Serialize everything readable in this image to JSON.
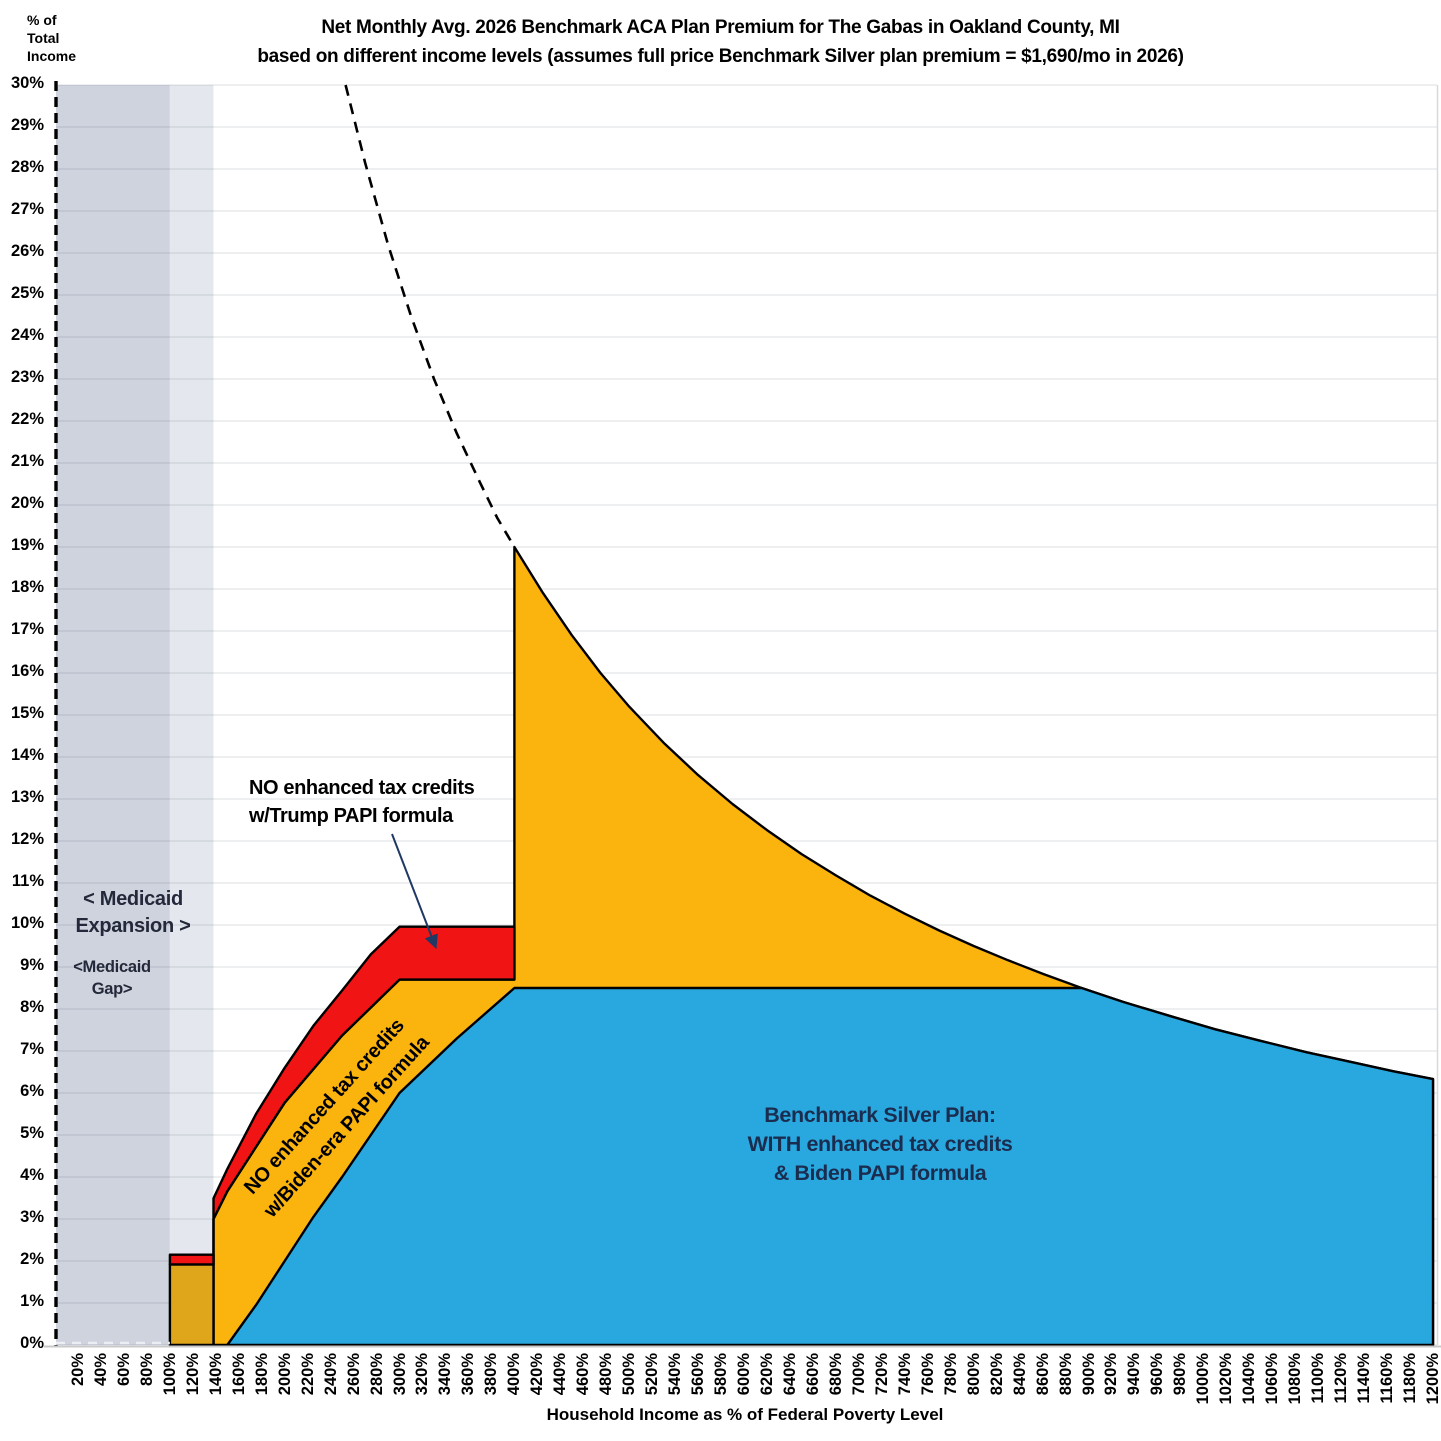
{
  "title": {
    "line1": "Net Monthly Avg. 2026 Benchmark ACA Plan Premium for The Gabas in Oakland County, MI",
    "line2": "based on different income levels (assumes full price Benchmark Silver plan premium = $1,690/mo in 2026)"
  },
  "y_axis": {
    "title_lines": [
      "% of",
      "Total",
      "Income"
    ],
    "min": 0,
    "max": 30,
    "step": 1,
    "suffix": "%"
  },
  "x_axis": {
    "title": "Household Income as % of Federal Poverty Level",
    "min": 20,
    "max": 1200,
    "step": 20,
    "suffix": "%"
  },
  "region_labels": {
    "expansion_line1": "< Medicaid",
    "expansion_line2": "Expansion >",
    "gap_line1": "<Medicaid",
    "gap_line2": "Gap>"
  },
  "annotations": {
    "trump_line1": "NO enhanced tax credits",
    "trump_line2": "w/Trump PAPI formula",
    "biden_line1": "NO enhanced tax credits",
    "biden_line2": "w/Biden-era PAPI formula",
    "blue_line1": "Benchmark Silver Plan:",
    "blue_line2": "WITH enhanced tax credits",
    "blue_line3": "& Biden PAPI formula"
  },
  "colors": {
    "red": "#F01414",
    "gold": "#FBB40E",
    "gold_shaded": "#DFA51B",
    "blue": "#29A8E0",
    "band_dark": "#CFD3DE",
    "band_light": "#E4E8EE",
    "grid": "rgba(70,80,100,0.14)",
    "outline": "#000000",
    "arrow": "#1F3864"
  },
  "chart_data": {
    "type": "area",
    "title": "Net Monthly Avg. 2026 Benchmark ACA Plan Premium for The Gabas in Oakland County, MI",
    "xlabel": "Household Income as % of Federal Poverty Level",
    "ylabel": "% of Total Income",
    "xlim": [
      20,
      1200
    ],
    "ylim": [
      0,
      30
    ],
    "grid": true,
    "bands": [
      {
        "name": "medicaid-expansion-band",
        "x": [
          0,
          100
        ],
        "color_key": "band_dark"
      },
      {
        "name": "medicaid-gap-band",
        "x": [
          100,
          138
        ],
        "color_key": "band_light"
      }
    ],
    "series": [
      {
        "name": "no-credits-biden-papi-area",
        "kind": "area",
        "color_key": "gold",
        "closed": true,
        "points": [
          [
            138,
            0
          ],
          [
            138,
            3.0
          ],
          [
            150,
            3.66
          ],
          [
            200,
            5.77
          ],
          [
            250,
            7.37
          ],
          [
            300,
            8.7
          ],
          [
            400,
            8.7
          ],
          [
            400,
            19
          ],
          [
            425,
            17.9
          ],
          [
            450,
            16.9
          ],
          [
            475,
            16.0
          ],
          [
            500,
            15.2
          ],
          [
            530,
            14.34
          ],
          [
            560,
            13.57
          ],
          [
            590,
            12.88
          ],
          [
            620,
            12.26
          ],
          [
            650,
            11.69
          ],
          [
            680,
            11.18
          ],
          [
            710,
            10.7
          ],
          [
            740,
            10.27
          ],
          [
            770,
            9.87
          ],
          [
            800,
            9.5
          ],
          [
            830,
            9.16
          ],
          [
            860,
            8.84
          ],
          [
            894,
            8.5
          ],
          [
            930,
            8.17
          ],
          [
            970,
            7.84
          ],
          [
            1010,
            7.52
          ],
          [
            1050,
            7.24
          ],
          [
            1090,
            6.97
          ],
          [
            1130,
            6.73
          ],
          [
            1165,
            6.52
          ],
          [
            1200,
            6.33
          ],
          [
            1200,
            0
          ]
        ]
      },
      {
        "name": "enhanced-credits-biden-area",
        "kind": "area",
        "color_key": "blue",
        "closed": true,
        "points": [
          [
            150,
            0
          ],
          [
            175,
            0.95
          ],
          [
            200,
            2
          ],
          [
            225,
            3.05
          ],
          [
            250,
            4
          ],
          [
            275,
            5.0
          ],
          [
            300,
            6
          ],
          [
            350,
            7.3
          ],
          [
            400,
            8.5
          ],
          [
            894,
            8.5
          ],
          [
            930,
            8.17
          ],
          [
            970,
            7.84
          ],
          [
            1010,
            7.52
          ],
          [
            1050,
            7.24
          ],
          [
            1090,
            6.97
          ],
          [
            1130,
            6.73
          ],
          [
            1165,
            6.52
          ],
          [
            1200,
            6.33
          ],
          [
            1200,
            0
          ]
        ]
      },
      {
        "name": "no-credits-trump-papi-area",
        "kind": "area",
        "color_key": "red",
        "closed": true,
        "points": [
          [
            138,
            1.92
          ],
          [
            138,
            3.49
          ],
          [
            150,
            4.19
          ],
          [
            175,
            5.5
          ],
          [
            200,
            6.6
          ],
          [
            225,
            7.6
          ],
          [
            250,
            8.44
          ],
          [
            275,
            9.3
          ],
          [
            300,
            9.96
          ],
          [
            400,
            9.96
          ],
          [
            400,
            8.7
          ],
          [
            300,
            8.7
          ],
          [
            250,
            7.37
          ],
          [
            200,
            5.77
          ],
          [
            150,
            3.66
          ],
          [
            138,
            3.0
          ]
        ]
      },
      {
        "name": "gold-block-medicaid-gap",
        "kind": "area",
        "color_key": "gold_shaded",
        "closed": true,
        "points": [
          [
            100,
            0
          ],
          [
            100,
            1.92
          ],
          [
            138,
            1.92
          ],
          [
            138,
            0
          ]
        ]
      },
      {
        "name": "red-block-medicaid-gap",
        "kind": "area",
        "color_key": "red",
        "closed": true,
        "points": [
          [
            100,
            1.92
          ],
          [
            100,
            2.15
          ],
          [
            138,
            2.15
          ],
          [
            138,
            1.92
          ]
        ]
      },
      {
        "name": "full-price-no-subsidy-dashed",
        "kind": "dashed-line",
        "points": [
          [
            253,
            30
          ],
          [
            270,
            28.15
          ],
          [
            290,
            26.2
          ],
          [
            310,
            24.5
          ],
          [
            330,
            23.0
          ],
          [
            350,
            21.7
          ],
          [
            370,
            20.54
          ],
          [
            385,
            19.7
          ],
          [
            400,
            19
          ]
        ]
      }
    ]
  }
}
